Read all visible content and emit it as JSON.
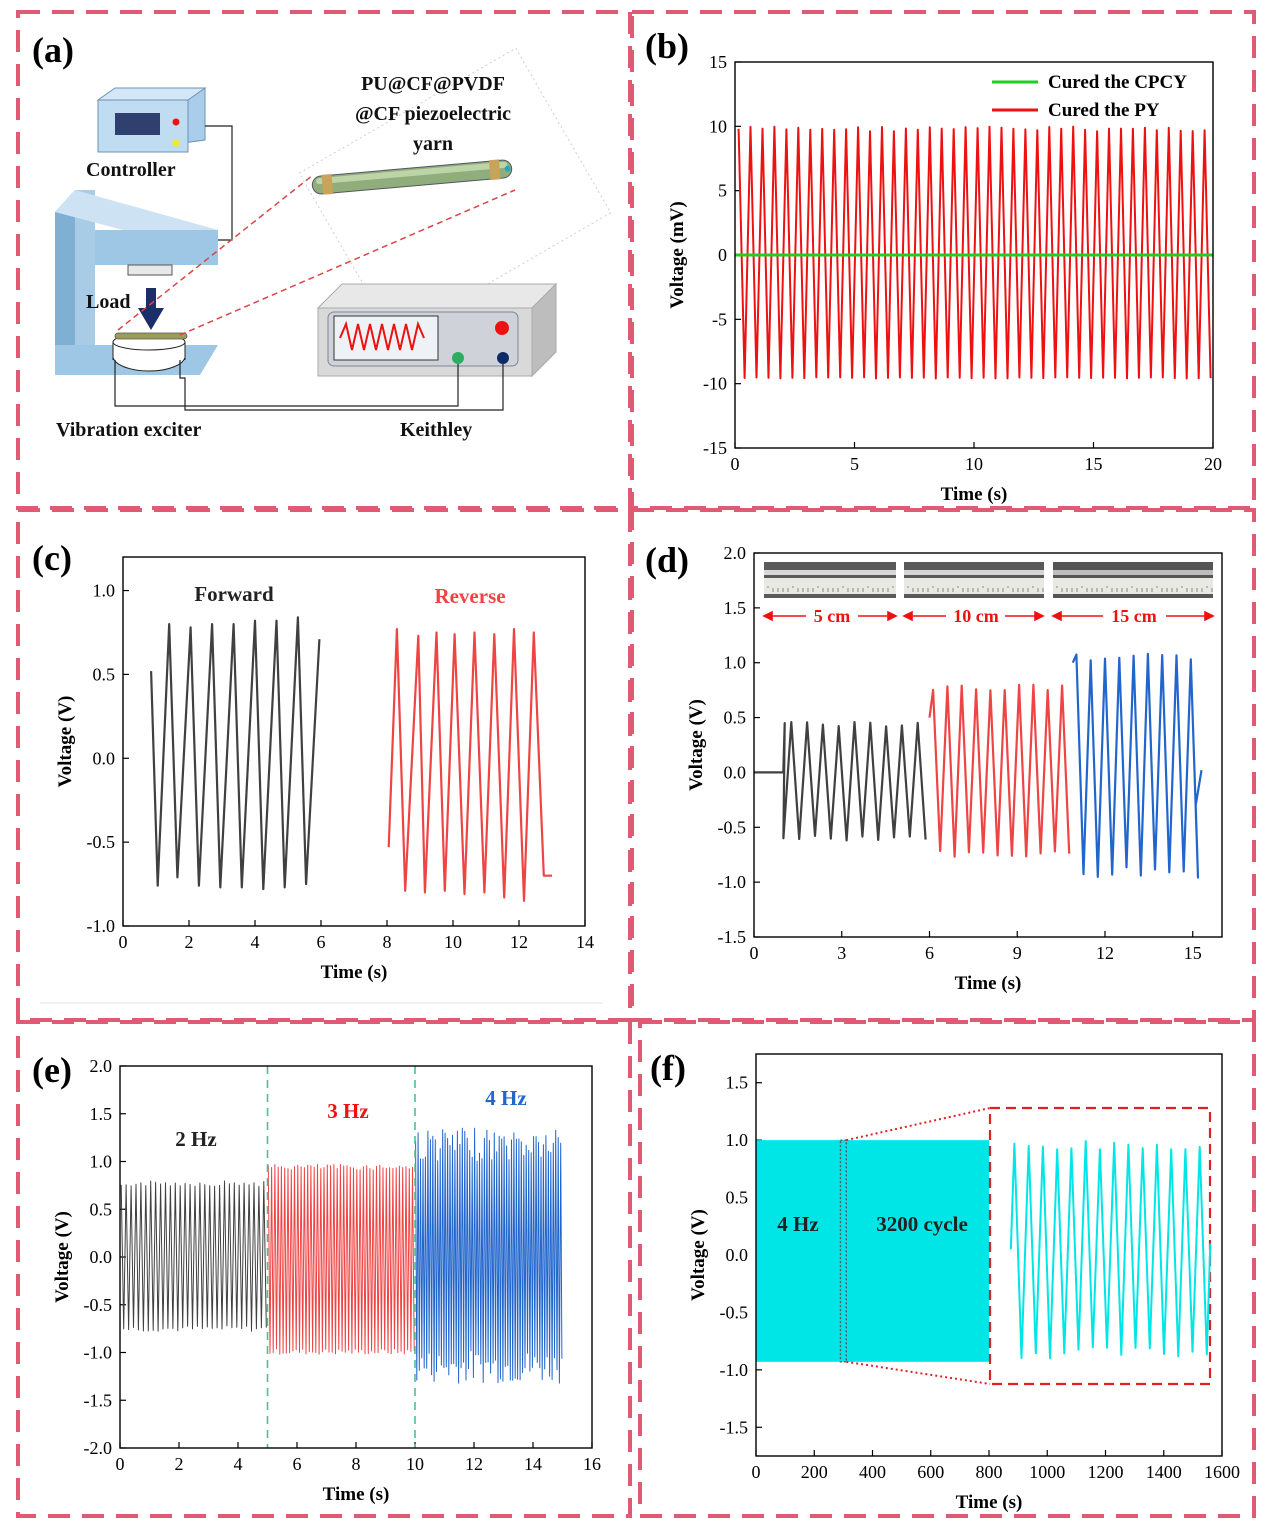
{
  "colors": {
    "border": "#e05a74",
    "forward": "#404040",
    "reverse": "#ef4444",
    "green": "#22cc22",
    "red": "#ee1111",
    "blue": "#2266cc",
    "cyan": "#00e6e6",
    "zoomBox": "#dd2222"
  },
  "panels": {
    "a": {
      "letter": "(a)",
      "yarn_label_line1": "PU@CF@PVDF",
      "yarn_label_line2": "@CF piezoelectric",
      "yarn_label_line3": "yarn",
      "controller": "Controller",
      "load": "Load",
      "vibration": "Vibration exciter",
      "keithley": "Keithley"
    },
    "b": {
      "letter": "(b)"
    },
    "c": {
      "letter": "(c)"
    },
    "d": {
      "letter": "(d)",
      "len1": "5 cm",
      "len2": "10 cm",
      "len3": "15 cm"
    },
    "e": {
      "letter": "(e)"
    },
    "f": {
      "letter": "(f)"
    }
  },
  "chart_data": [
    {
      "id": "b",
      "type": "line",
      "xlabel": "Time (s)",
      "ylabel": "Voltage (mV)",
      "xlim": [
        0,
        20
      ],
      "ylim": [
        -15,
        15
      ],
      "xticks": [
        "0",
        "5",
        "10",
        "15",
        "20"
      ],
      "yticks": [
        "-15",
        "-10",
        "-5",
        "0",
        "5",
        "10",
        "15"
      ],
      "legend_position": "top-right",
      "series": [
        {
          "name": "Cured the CPCY",
          "color": "#22cc22",
          "constant": 0
        },
        {
          "name": "Cured the PY",
          "color": "#ee1111",
          "frequency_hz": 2,
          "peak": 10,
          "trough": -9.5
        }
      ]
    },
    {
      "id": "c",
      "type": "line",
      "xlabel": "Time (s)",
      "ylabel": "Voltage (V)",
      "xlim": [
        0,
        14
      ],
      "ylim": [
        -1.0,
        1.2
      ],
      "xticks": [
        "0",
        "2",
        "4",
        "6",
        "8",
        "10",
        "12",
        "14"
      ],
      "yticks": [
        "-1.0",
        "-0.5",
        "0.0",
        "0.5",
        "1.0"
      ],
      "annotations": [
        "Forward",
        "Reverse"
      ],
      "series": [
        {
          "name": "Forward",
          "color": "#404040",
          "x": [
            0.85,
            1.05,
            1.4,
            1.65,
            2.05,
            2.3,
            2.7,
            2.95,
            3.35,
            3.6,
            4.0,
            4.25,
            4.65,
            4.9,
            5.3,
            5.55,
            5.95
          ],
          "y": [
            0.52,
            -0.76,
            0.8,
            -0.71,
            0.78,
            -0.76,
            0.8,
            -0.77,
            0.8,
            -0.77,
            0.82,
            -0.78,
            0.82,
            -0.77,
            0.84,
            -0.75,
            0.71
          ]
        },
        {
          "name": "Reverse",
          "color": "#ef4444",
          "x": [
            8.05,
            8.3,
            8.55,
            8.95,
            9.15,
            9.5,
            9.75,
            10.05,
            10.35,
            10.65,
            10.95,
            11.25,
            11.55,
            11.85,
            12.15,
            12.45,
            12.75,
            13.0
          ],
          "y": [
            -0.53,
            0.77,
            -0.79,
            0.73,
            -0.8,
            0.75,
            -0.79,
            0.74,
            -0.81,
            0.75,
            -0.8,
            0.74,
            -0.83,
            0.77,
            -0.85,
            0.75,
            -0.7,
            -0.7
          ]
        }
      ]
    },
    {
      "id": "d",
      "type": "line",
      "xlabel": "Time (s)",
      "ylabel": "Voltage (V)",
      "xlim": [
        0,
        16
      ],
      "ylim": [
        -1.5,
        2.0
      ],
      "xticks": [
        "0",
        "3",
        "6",
        "9",
        "12",
        "15"
      ],
      "yticks": [
        "-1.5",
        "-1.0",
        "-0.5",
        "0.0",
        "0.5",
        "1.0",
        "1.5",
        "2.0"
      ],
      "series": [
        {
          "name": "5 cm",
          "color": "#404040",
          "x_range": [
            0,
            6.0
          ],
          "peak": 0.48,
          "trough": -0.62,
          "cycles": 10
        },
        {
          "name": "10 cm",
          "color": "#ef4444",
          "x_range": [
            6.0,
            10.9
          ],
          "peak": 0.8,
          "trough": -0.77,
          "cycles": 10
        },
        {
          "name": "15 cm",
          "color": "#2266cc",
          "x_range": [
            10.9,
            15.3
          ],
          "peak": 1.08,
          "trough": -0.96,
          "cycles": 9
        }
      ]
    },
    {
      "id": "e",
      "type": "line",
      "xlabel": "Time (s)",
      "ylabel": "Voltage (V)",
      "xlim": [
        0,
        16
      ],
      "ylim": [
        -2.0,
        2.0
      ],
      "xticks": [
        "0",
        "2",
        "4",
        "6",
        "8",
        "10",
        "12",
        "14",
        "16"
      ],
      "yticks": [
        "-2.0",
        "-1.5",
        "-1.0",
        "-0.5",
        "0.0",
        "0.5",
        "1.0",
        "1.5",
        "2.0"
      ],
      "dividers_x": [
        5,
        10
      ],
      "annotations": [
        "2 Hz",
        "3 Hz",
        "4 Hz"
      ],
      "series": [
        {
          "name": "2 Hz",
          "color": "#404040",
          "x_range": [
            0,
            5
          ],
          "peak": 0.8,
          "trough": -0.78
        },
        {
          "name": "3 Hz",
          "color": "#ef4444",
          "x_range": [
            5,
            10
          ],
          "peak": 0.97,
          "trough": -1.02
        },
        {
          "name": "4 Hz",
          "color": "#2266cc",
          "x_range": [
            10,
            15
          ],
          "peak": 1.35,
          "trough": -1.32
        }
      ]
    },
    {
      "id": "f",
      "type": "area",
      "xlabel": "Time (s)",
      "ylabel": "Voltage (V)",
      "xlim": [
        0,
        1600
      ],
      "ylim": [
        -1.75,
        1.75
      ],
      "xticks": [
        "0",
        "200",
        "400",
        "600",
        "800",
        "1000",
        "1200",
        "1400",
        "1600"
      ],
      "yticks": [
        "-1.5",
        "-1.0",
        "-0.5",
        "0.0",
        "0.5",
        "1.0",
        "1.5"
      ],
      "annotations": [
        "4 Hz",
        "3200 cycle"
      ],
      "band": {
        "x_range": [
          0,
          800
        ],
        "top": 1.0,
        "bottom": -0.93,
        "color": "#00e6e6"
      },
      "zoom_window_x": [
        290,
        310
      ],
      "inset": {
        "x_range": [
          875,
          1560
        ],
        "peak": 1.0,
        "trough": -0.9,
        "cycles": 14,
        "color": "#00e6e6"
      }
    }
  ]
}
